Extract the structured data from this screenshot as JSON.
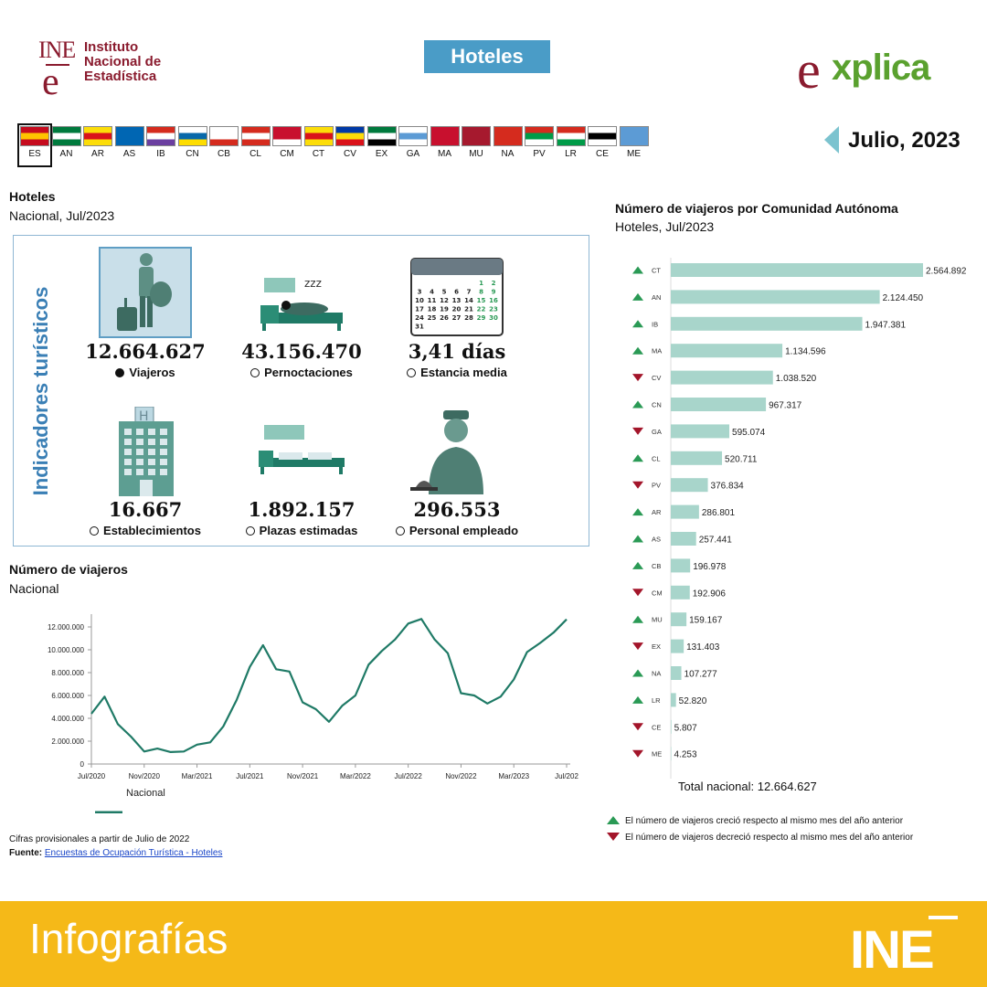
{
  "header": {
    "ine_mark_top": "INE",
    "ine_mark_bottom": "e",
    "ine_name": "Instituto\nNacional de\nEstadística",
    "badge": "Hoteles",
    "explica": "xplica",
    "explica_e": "e",
    "period": "Julio, 2023"
  },
  "flags": [
    {
      "code": "ES",
      "colors": [
        "#c60b1e",
        "#ffc400",
        "#c60b1e"
      ],
      "selected": true
    },
    {
      "code": "AN",
      "colors": [
        "#007a3d",
        "#ffffff",
        "#007a3d"
      ]
    },
    {
      "code": "AR",
      "colors": [
        "#fcdd09",
        "#da121a",
        "#fcdd09"
      ]
    },
    {
      "code": "AS",
      "colors": [
        "#0066b3",
        "#0066b3",
        "#0066b3"
      ]
    },
    {
      "code": "IB",
      "colors": [
        "#d52b1e",
        "#ffffff",
        "#6b3fa0"
      ]
    },
    {
      "code": "CN",
      "colors": [
        "#ffffff",
        "#0768a9",
        "#fedd00"
      ]
    },
    {
      "code": "CB",
      "colors": [
        "#ffffff",
        "#ffffff",
        "#d52b1e"
      ]
    },
    {
      "code": "CL",
      "colors": [
        "#d52b1e",
        "#ffffff",
        "#d52b1e"
      ]
    },
    {
      "code": "CM",
      "colors": [
        "#c8102e",
        "#c8102e",
        "#ffffff"
      ]
    },
    {
      "code": "CT",
      "colors": [
        "#fcdd09",
        "#da121a",
        "#fcdd09"
      ]
    },
    {
      "code": "CV",
      "colors": [
        "#0039a6",
        "#fcdd09",
        "#da121a"
      ]
    },
    {
      "code": "EX",
      "colors": [
        "#007a3d",
        "#ffffff",
        "#000000"
      ]
    },
    {
      "code": "GA",
      "colors": [
        "#ffffff",
        "#5c9bd5",
        "#ffffff"
      ]
    },
    {
      "code": "MA",
      "colors": [
        "#c8102e",
        "#c8102e",
        "#c8102e"
      ]
    },
    {
      "code": "MU",
      "colors": [
        "#a6192e",
        "#a6192e",
        "#a6192e"
      ]
    },
    {
      "code": "NA",
      "colors": [
        "#d52b1e",
        "#d52b1e",
        "#d52b1e"
      ]
    },
    {
      "code": "PV",
      "colors": [
        "#d52b1e",
        "#009b48",
        "#ffffff"
      ]
    },
    {
      "code": "LR",
      "colors": [
        "#d52b1e",
        "#ffffff",
        "#009b48"
      ]
    },
    {
      "code": "CE",
      "colors": [
        "#ffffff",
        "#000000",
        "#ffffff"
      ]
    },
    {
      "code": "ME",
      "colors": [
        "#5c9bd5",
        "#5c9bd5",
        "#5c9bd5"
      ]
    }
  ],
  "indicators": {
    "title": "Hoteles",
    "subtitle": "Nacional, Jul/2023",
    "vertical_label": "Indicadores turísticos",
    "items": [
      {
        "value": "12.664.627",
        "label": "Viajeros",
        "selected": true,
        "icon": "traveler-icon"
      },
      {
        "value": "43.156.470",
        "label": "Pernoctaciones",
        "selected": false,
        "icon": "bed-icon"
      },
      {
        "value": "3,41 días",
        "label": "Estancia media",
        "selected": false,
        "icon": "calendar-icon"
      },
      {
        "value": "16.667",
        "label": "Establecimientos",
        "selected": false,
        "icon": "hotel-building-icon"
      },
      {
        "value": "1.892.157",
        "label": "Plazas estimadas",
        "selected": false,
        "icon": "beds-icon"
      },
      {
        "value": "296.553",
        "label": "Personal empleado",
        "selected": false,
        "icon": "bellboy-icon"
      }
    ],
    "calendar_days": [
      "1",
      "2",
      "3",
      "4",
      "5",
      "6",
      "7",
      "8",
      "9",
      "10",
      "11",
      "12",
      "13",
      "14",
      "15",
      "16",
      "17",
      "18",
      "19",
      "20",
      "21",
      "22",
      "23",
      "24",
      "25",
      "26",
      "27",
      "28",
      "29",
      "30",
      "31"
    ]
  },
  "line_section": {
    "title": "Número de viajeros",
    "subtitle": "Nacional"
  },
  "footnote": {
    "text": "Cifras provisionales a partir de Julio de 2022",
    "source_label": "Fuente:",
    "source_link": "Encuestas de Ocupación Turística - Hoteles"
  },
  "bar_section": {
    "title": "Número de viajeros por Comunidad Autónoma",
    "subtitle": "Hoteles, Jul/2023",
    "total": "Total nacional: 12.664.627",
    "legend_up": "El número de viajeros creció respecto al mismo mes del año anterior",
    "legend_down": "El número de viajeros decreció respecto al mismo mes del año anterior"
  },
  "colors": {
    "line": "#1f7a66",
    "bar": "#a8d5cb",
    "up": "#2a9a55",
    "down": "#a3152a",
    "accent": "#3a7fb5"
  },
  "chart_data": [
    {
      "type": "line",
      "x_ticks": [
        "Jul/2020",
        "Nov/2020",
        "Mar/2021",
        "Jul/2021",
        "Nov/2021",
        "Mar/2022",
        "Jul/2022",
        "Nov/2022",
        "Mar/2023",
        "Jul/202"
      ],
      "y_ticks": [
        "0",
        "2.000.000",
        "4.000.000",
        "6.000.000",
        "8.000.000",
        "10.000.000",
        "12.000.000"
      ],
      "ylim": [
        0,
        12664627
      ],
      "series": [
        {
          "name": "Nacional",
          "values": [
            4400000,
            5900000,
            3500000,
            2400000,
            1100000,
            1350000,
            1050000,
            1100000,
            1700000,
            1900000,
            3300000,
            5600000,
            8500000,
            10400000,
            8300000,
            8100000,
            5400000,
            4800000,
            3700000,
            5100000,
            6000000,
            8700000,
            9900000,
            10900000,
            12300000,
            12700000,
            10900000,
            9700000,
            6200000,
            6000000,
            5300000,
            5900000,
            7400000,
            9800000,
            10600000,
            11500000,
            12664627
          ]
        }
      ]
    },
    {
      "type": "bar",
      "orientation": "horizontal",
      "categories": [
        "CT",
        "AN",
        "IB",
        "MA",
        "CV",
        "CN",
        "GA",
        "CL",
        "PV",
        "AR",
        "AS",
        "CB",
        "CM",
        "MU",
        "EX",
        "NA",
        "LR",
        "CE",
        "ME"
      ],
      "values": [
        2564892,
        2124450,
        1947381,
        1134596,
        1038520,
        967317,
        595074,
        520711,
        376834,
        286801,
        257441,
        196978,
        192906,
        159167,
        131403,
        107277,
        52820,
        5807,
        4253
      ],
      "labels": [
        "2.564.892",
        "2.124.450",
        "1.947.381",
        "1.134.596",
        "1.038.520",
        "967.317",
        "595.074",
        "520.711",
        "376.834",
        "286.801",
        "257.441",
        "196.978",
        "192.906",
        "159.167",
        "131.403",
        "107.277",
        "52.820",
        "5.807",
        "4.253"
      ],
      "trend": [
        "up",
        "up",
        "up",
        "up",
        "down",
        "up",
        "down",
        "up",
        "down",
        "up",
        "up",
        "up",
        "down",
        "up",
        "down",
        "up",
        "up",
        "down",
        "down"
      ]
    }
  ],
  "footer": {
    "title": "Infografías",
    "logo": "INE"
  }
}
